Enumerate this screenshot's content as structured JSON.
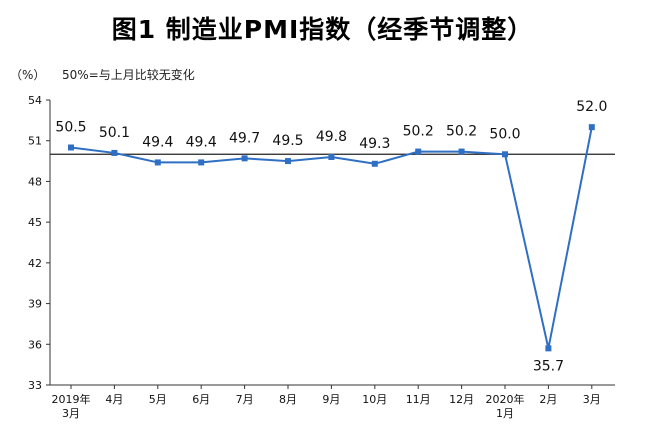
{
  "title": "图1 制造业PMI指数（经季节调整）",
  "y_unit": "（%）",
  "note": "50%=与上月比较无变化",
  "chart_data": {
    "type": "line",
    "title": "图1 制造业PMI指数（经季节调整）",
    "xlabel": "",
    "ylabel": "（%）",
    "ylim": [
      33,
      54
    ],
    "yticks": [
      33,
      36,
      39,
      42,
      45,
      48,
      51,
      54
    ],
    "reference_line": 50,
    "categories": [
      [
        "2019年",
        "3月"
      ],
      [
        "4月"
      ],
      [
        "5月"
      ],
      [
        "6月"
      ],
      [
        "7月"
      ],
      [
        "8月"
      ],
      [
        "9月"
      ],
      [
        "10月"
      ],
      [
        "11月"
      ],
      [
        "12月"
      ],
      [
        "2020年",
        "1月"
      ],
      [
        "2月"
      ],
      [
        "3月"
      ]
    ],
    "values": [
      50.5,
      50.1,
      49.4,
      49.4,
      49.7,
      49.5,
      49.8,
      49.3,
      50.2,
      50.2,
      50.0,
      35.7,
      52.0
    ],
    "value_labels": [
      "50.5",
      "50.1",
      "49.4",
      "49.4",
      "49.7",
      "49.5",
      "49.8",
      "49.3",
      "50.2",
      "50.2",
      "50.0",
      "35.7",
      "52.0"
    ],
    "line_color": "#2f6fc4",
    "grid": false,
    "legend": "none"
  }
}
